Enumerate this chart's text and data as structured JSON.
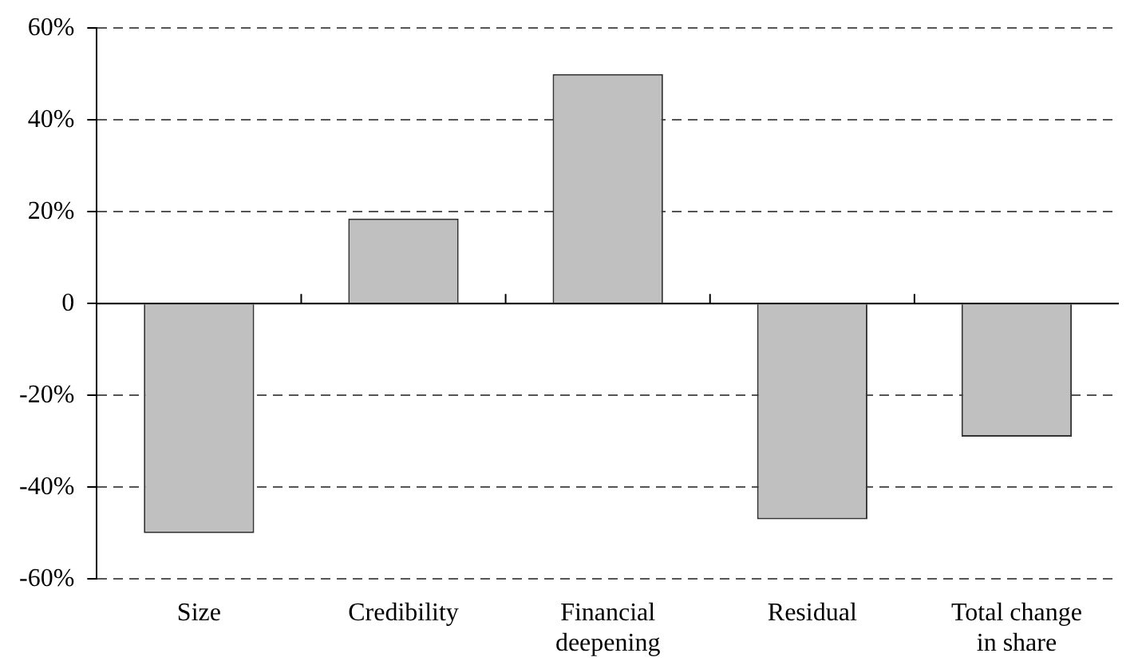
{
  "chart_data": {
    "type": "bar",
    "categories": [
      "Size",
      "Credibility",
      "Financial deepening",
      "Residual",
      "Total change in share"
    ],
    "values": [
      -50,
      18.5,
      50,
      -47,
      -29
    ],
    "color": "#c0c0c0",
    "ylim": [
      -60,
      60
    ],
    "yticks": [
      {
        "value": -60,
        "label": "-60%"
      },
      {
        "value": -40,
        "label": "-40%"
      },
      {
        "value": -20,
        "label": "-20%"
      },
      0,
      {
        "value": 20,
        "label": "20%"
      },
      {
        "value": 40,
        "label": "40%"
      },
      {
        "value": 60,
        "label": "60%"
      }
    ],
    "grid": "y",
    "legend": false
  }
}
